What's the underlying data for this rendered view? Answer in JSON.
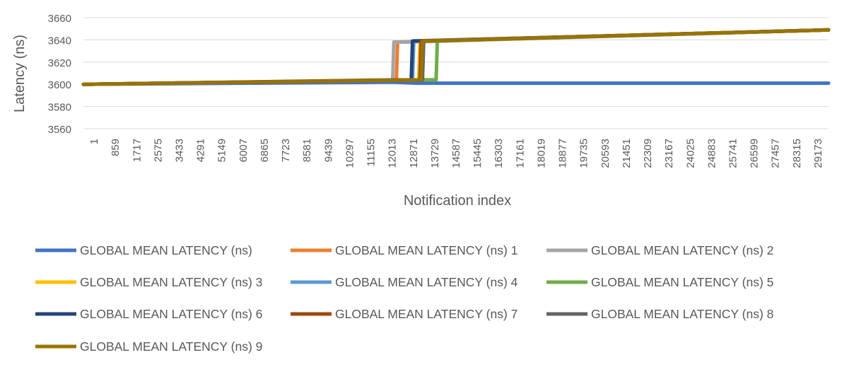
{
  "chart_data": {
    "type": "line",
    "title": "",
    "xlabel": "Notification index",
    "ylabel": "Latency (ns)",
    "ylim": [
      3560,
      3660
    ],
    "y_ticks": [
      3560,
      3580,
      3600,
      3620,
      3640,
      3660
    ],
    "x_tick_labels": [
      "1",
      "859",
      "1717",
      "2575",
      "3433",
      "4291",
      "5149",
      "6007",
      "6865",
      "7723",
      "8581",
      "9439",
      "10297",
      "11155",
      "12013",
      "12871",
      "13729",
      "14587",
      "15445",
      "16303",
      "17161",
      "18019",
      "18877",
      "19735",
      "20593",
      "21451",
      "22309",
      "23167",
      "24025",
      "24883",
      "25741",
      "26599",
      "27457",
      "28315",
      "29173"
    ],
    "xlim": [
      1,
      30000
    ],
    "grid": "horizontal",
    "legend_position": "bottom",
    "series": [
      {
        "name": "GLOBAL MEAN LATENCY (ns)",
        "color": "#4472C4",
        "x": [
          1,
          12500,
          13400,
          30000
        ],
        "y": [
          3600,
          3602,
          3601,
          3601
        ]
      },
      {
        "name": "GLOBAL MEAN LATENCY (ns) 1",
        "color": "#ED7D31",
        "x": [
          1,
          12600,
          12650,
          12700,
          30000
        ],
        "y": [
          3600,
          3604,
          3638,
          3638,
          3649
        ]
      },
      {
        "name": "GLOBAL MEAN LATENCY (ns) 2",
        "color": "#A5A5A5",
        "x": [
          1,
          12450,
          12500,
          13000,
          30000
        ],
        "y": [
          3600,
          3604,
          3638,
          3638,
          3649
        ]
      },
      {
        "name": "GLOBAL MEAN LATENCY (ns) 3",
        "color": "#FFC000",
        "x": [
          1,
          13500,
          13550,
          30000
        ],
        "y": [
          3600,
          3604,
          3639,
          3649
        ]
      },
      {
        "name": "GLOBAL MEAN LATENCY (ns) 4",
        "color": "#5B9BD5",
        "x": [
          1,
          13250,
          13300,
          30000
        ],
        "y": [
          3600,
          3604,
          3639,
          3649
        ]
      },
      {
        "name": "GLOBAL MEAN LATENCY (ns) 5",
        "color": "#70AD47",
        "x": [
          1,
          13700,
          14200,
          14250,
          30000
        ],
        "y": [
          3600,
          3604,
          3604,
          3639,
          3649
        ]
      },
      {
        "name": "GLOBAL MEAN LATENCY (ns) 6",
        "color": "#264478",
        "x": [
          1,
          13200,
          13250,
          30000
        ],
        "y": [
          3600,
          3604,
          3639,
          3649
        ]
      },
      {
        "name": "GLOBAL MEAN LATENCY (ns) 7",
        "color": "#9E480E",
        "x": [
          1,
          13550,
          13600,
          30000
        ],
        "y": [
          3600,
          3604,
          3639,
          3649
        ]
      },
      {
        "name": "GLOBAL MEAN LATENCY (ns) 8",
        "color": "#636363",
        "x": [
          1,
          13650,
          13700,
          30000
        ],
        "y": [
          3600,
          3604,
          3639,
          3649
        ]
      },
      {
        "name": "GLOBAL MEAN LATENCY (ns) 9",
        "color": "#997300",
        "x": [
          1,
          13600,
          13650,
          30000
        ],
        "y": [
          3600,
          3604,
          3639,
          3649
        ]
      }
    ]
  }
}
